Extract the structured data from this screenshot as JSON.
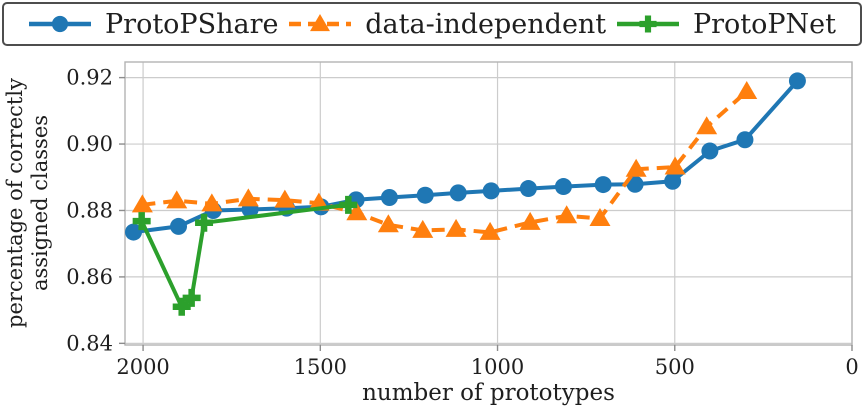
{
  "legend": {
    "items": [
      {
        "label": "ProtoPShare"
      },
      {
        "label": "data-independent"
      },
      {
        "label": "ProtoPNet"
      }
    ]
  },
  "axes": {
    "xlabel": "number of prototypes",
    "ylabel_lines": [
      "percentage of correctly",
      "assigned classes"
    ]
  },
  "style": {
    "grid_color": "#cccccc",
    "spine_color": "#b3b3b3",
    "tick_color": "#8c8c8c",
    "text_color": "#1f1f1f"
  },
  "chart_data": {
    "type": "line",
    "title": "",
    "xlabel": "number of prototypes",
    "ylabel": "percentage of correctly assigned classes",
    "x_axis_reversed": true,
    "xlim": [
      2051,
      0
    ],
    "ylim": [
      0.8395,
      0.9247
    ],
    "x_ticks": [
      2000,
      1500,
      1000,
      500,
      0
    ],
    "x_tick_labels": [
      "2000",
      "1500",
      "1000",
      "500",
      "0"
    ],
    "y_ticks": [
      0.84,
      0.86,
      0.88,
      0.9,
      0.92
    ],
    "y_tick_labels": [
      "0.84",
      "0.86",
      "0.88",
      "0.90",
      "0.92"
    ],
    "grid": true,
    "legend_position": "top",
    "series": [
      {
        "name": "ProtoPShare",
        "color": "#1f77b4",
        "marker": "circle",
        "line_style": "solid",
        "points": [
          [
            2027,
            0.8735
          ],
          [
            1900,
            0.8752
          ],
          [
            1802,
            0.88
          ],
          [
            1698,
            0.8803
          ],
          [
            1595,
            0.8807
          ],
          [
            1498,
            0.8811
          ],
          [
            1399,
            0.8832
          ],
          [
            1305,
            0.8839
          ],
          [
            1204,
            0.8846
          ],
          [
            1111,
            0.8853
          ],
          [
            1018,
            0.8859
          ],
          [
            913,
            0.8866
          ],
          [
            814,
            0.8872
          ],
          [
            702,
            0.8878
          ],
          [
            612,
            0.8879
          ],
          [
            506,
            0.8888
          ],
          [
            401,
            0.8979
          ],
          [
            302,
            0.9013
          ],
          [
            154,
            0.919
          ]
        ]
      },
      {
        "name": "data-independent",
        "color": "#ff7f0e",
        "marker": "triangle",
        "line_style": "dashed",
        "points": [
          [
            2002,
            0.8817
          ],
          [
            1905,
            0.8829
          ],
          [
            1806,
            0.882
          ],
          [
            1703,
            0.8835
          ],
          [
            1600,
            0.8831
          ],
          [
            1504,
            0.8822
          ],
          [
            1397,
            0.8793
          ],
          [
            1308,
            0.8757
          ],
          [
            1211,
            0.874
          ],
          [
            1117,
            0.8743
          ],
          [
            1021,
            0.8734
          ],
          [
            908,
            0.8764
          ],
          [
            805,
            0.8784
          ],
          [
            711,
            0.8776
          ],
          [
            609,
            0.8924
          ],
          [
            499,
            0.8931
          ],
          [
            410,
            0.9052
          ],
          [
            297,
            0.9158
          ]
        ]
      },
      {
        "name": "ProtoPNet",
        "color": "#2ca02c",
        "marker": "plus",
        "line_style": "solid",
        "points": [
          [
            2004,
            0.8768
          ],
          [
            1891,
            0.851
          ],
          [
            1863,
            0.8537
          ],
          [
            1828,
            0.8763
          ],
          [
            1421,
            0.8817
          ]
        ]
      }
    ]
  }
}
